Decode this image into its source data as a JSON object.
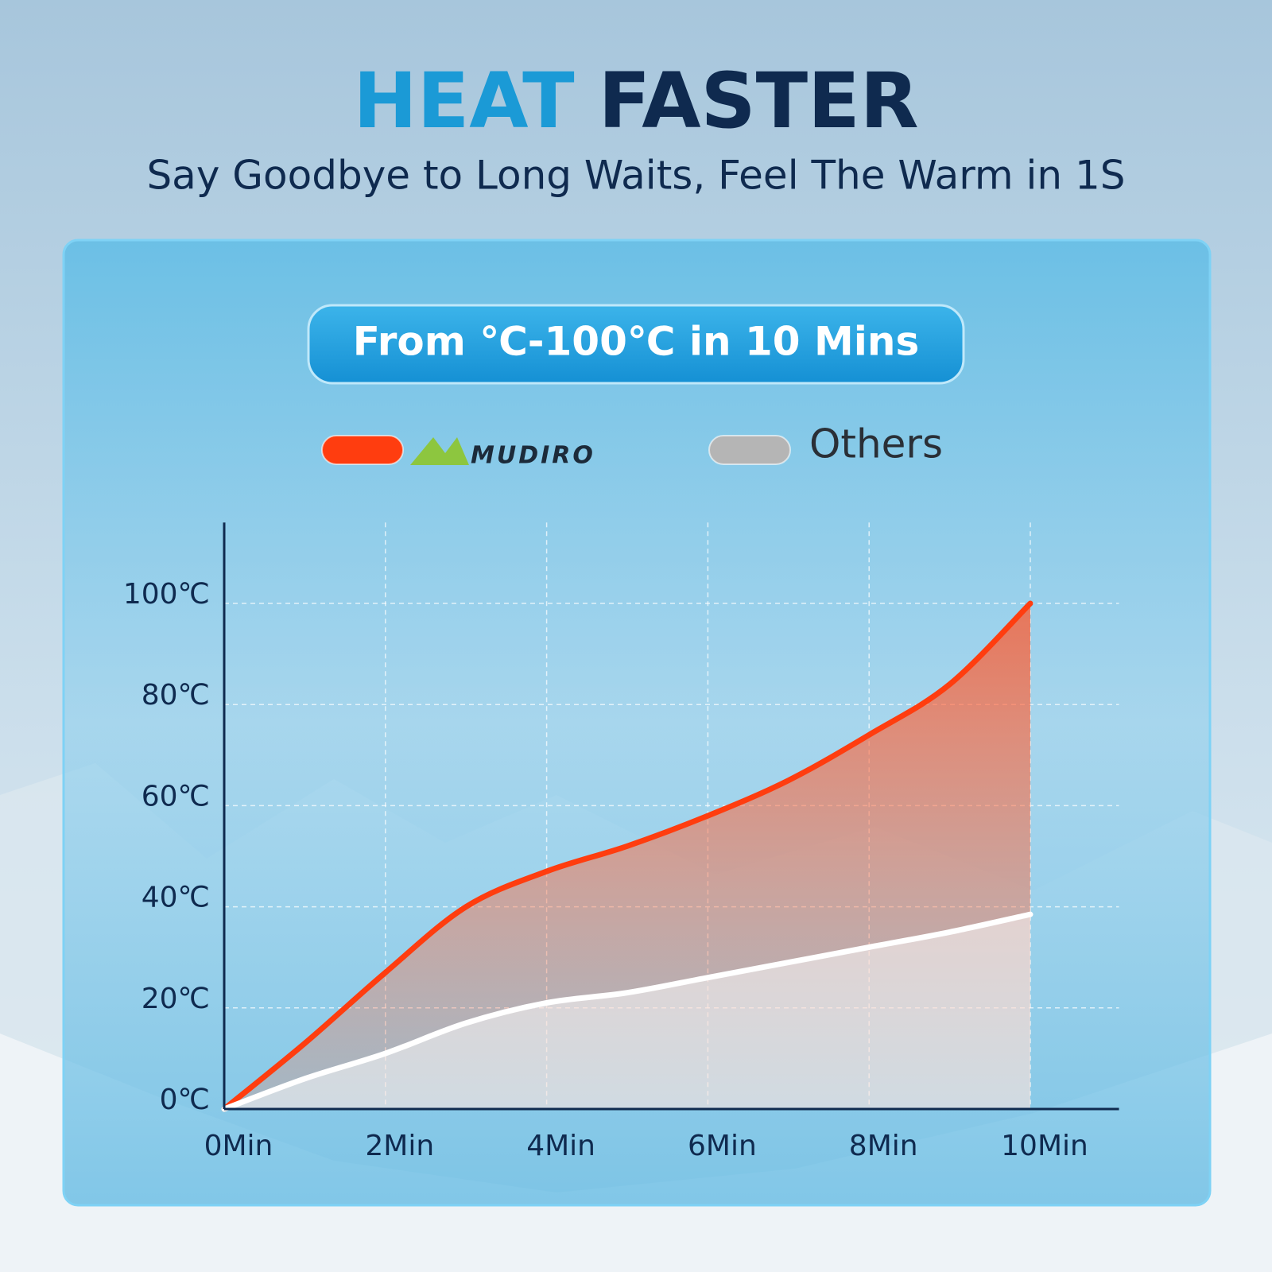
{
  "chart_data": {
    "type": "area-line",
    "title_part1": "HEAT",
    "title_part2": "FASTER",
    "subtitle": "Say Goodbye to Long Waits, Feel The Warm in 1S",
    "badge": "From ℃-100℃ in 10 Mins",
    "x": [
      0,
      1,
      2,
      3,
      4,
      5,
      6,
      7,
      8,
      9,
      10
    ],
    "series": [
      {
        "name": "MUDIRO",
        "color": "#ff3d0f",
        "values": [
          0,
          13,
          27,
          40,
          47,
          52,
          58,
          65,
          74,
          84,
          100
        ]
      },
      {
        "name": "Others",
        "color": "#ffffff",
        "values": [
          0,
          6,
          11,
          17,
          21,
          23,
          26,
          29,
          32,
          35,
          38.5
        ]
      }
    ],
    "xlim": [
      0,
      11.1
    ],
    "ylim": [
      0,
      116
    ],
    "xticks": [
      {
        "value": 0,
        "label": "0Min"
      },
      {
        "value": 2,
        "label": "2Min"
      },
      {
        "value": 4,
        "label": "4Min"
      },
      {
        "value": 6,
        "label": "6Min"
      },
      {
        "value": 8,
        "label": "8Min"
      },
      {
        "value": 10,
        "label": "10Min"
      }
    ],
    "yticks": [
      {
        "value": 0,
        "label": "0℃"
      },
      {
        "value": 20,
        "label": "20℃"
      },
      {
        "value": 40,
        "label": "40℃"
      },
      {
        "value": 60,
        "label": "60℃"
      },
      {
        "value": 80,
        "label": "80℃"
      },
      {
        "value": 100,
        "label": "100℃"
      }
    ],
    "grid": true
  }
}
